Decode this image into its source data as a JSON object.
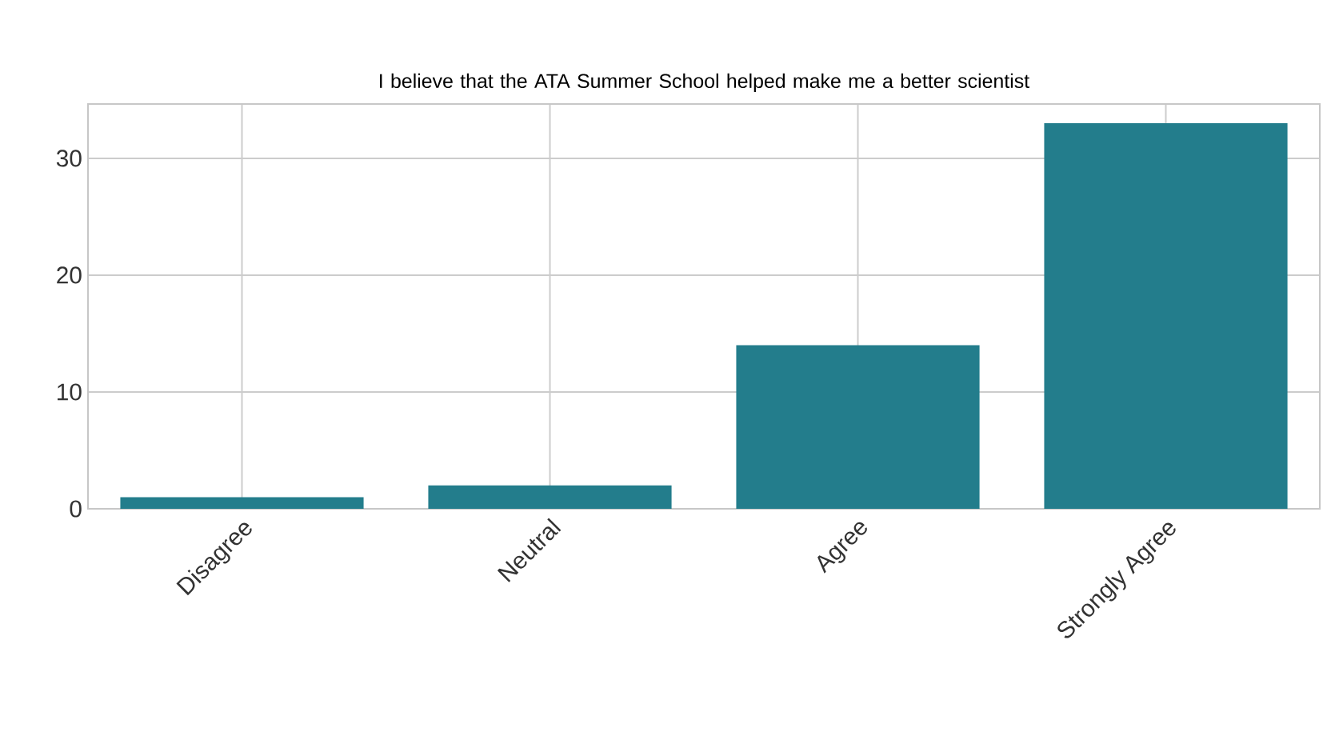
{
  "chart_data": {
    "type": "bar",
    "title": "I believe that the ATA Summer School helped make me a better scientist",
    "categories": [
      "Disagree",
      "Neutral",
      "Agree",
      "Strongly Agree"
    ],
    "values": [
      1,
      2,
      14,
      33
    ],
    "color": "#237d8c",
    "ylim": [
      0,
      34.65
    ],
    "yticks": [
      0,
      10,
      20,
      30
    ],
    "grid": true
  }
}
